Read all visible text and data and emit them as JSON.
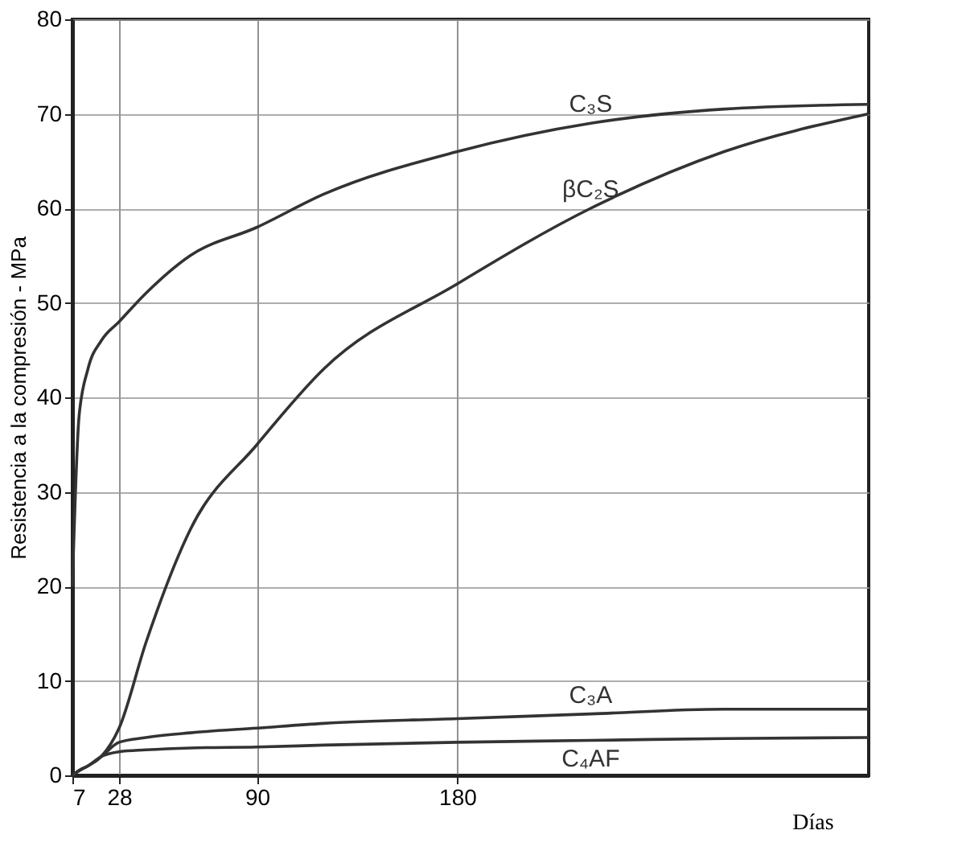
{
  "chart_data": {
    "type": "line",
    "xlabel": "Días",
    "ylabel": "Resistencia a la compresión - MPa",
    "x": [
      7,
      10,
      14,
      20,
      28,
      40,
      60,
      90,
      120,
      180,
      240,
      300,
      365
    ],
    "series": [
      {
        "name": "C₃S",
        "color": "#333333",
        "values": [
          20,
          38,
          43,
          46,
          48,
          51,
          55,
          58,
          61.5,
          66,
          69,
          70.5,
          71
        ]
      },
      {
        "name": "βC₂S",
        "color": "#333333",
        "values": [
          0,
          0.5,
          1,
          2,
          5,
          14,
          26,
          35,
          43,
          52,
          60,
          66,
          70
        ]
      },
      {
        "name": "C₃A",
        "color": "#333333",
        "values": [
          0,
          0.5,
          1,
          2,
          3.5,
          4,
          4.5,
          5,
          5.5,
          6,
          6.5,
          7,
          7
        ]
      },
      {
        "name": "C₄AF",
        "color": "#333333",
        "values": [
          0,
          0.5,
          1,
          2,
          2.5,
          2.7,
          2.9,
          3,
          3.2,
          3.5,
          3.7,
          3.9,
          4
        ]
      }
    ],
    "xlim": [
      7,
      365
    ],
    "ylim": [
      0,
      80
    ],
    "xticks": [
      7,
      28,
      90,
      180
    ],
    "yticks": [
      0,
      10,
      20,
      30,
      40,
      50,
      60,
      70,
      80
    ],
    "grid": true,
    "marker": "none",
    "line_style": "solid"
  }
}
